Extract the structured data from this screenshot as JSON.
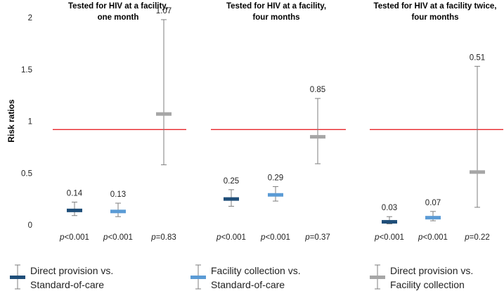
{
  "chart_data": {
    "type": "scatter",
    "subtype": "point-estimate-with-error-bars",
    "ylabel": "Risk ratios",
    "ylim": [
      0,
      2
    ],
    "yticks": [
      "0",
      "0.5",
      "1",
      "1.5",
      "2"
    ],
    "reference_line": {
      "value": 0.92,
      "color": "#e8262b"
    },
    "series": [
      {
        "name": "Direct provision vs. Standard-of-care",
        "color": "#1f4e79"
      },
      {
        "name": "Facility collection vs. Standard-of-care",
        "color": "#5b9bd5"
      },
      {
        "name": "Direct provision vs. Facility collection",
        "color": "#a6a6a6"
      }
    ],
    "panels": [
      {
        "title_line1": "Tested for HIV at a facility,",
        "title_line2": "one month",
        "points": [
          {
            "series": 0,
            "value": 0.14,
            "lower": 0.09,
            "upper": 0.22,
            "label": "0.14",
            "p_prefix": "p",
            "p_rest": "<0.001"
          },
          {
            "series": 1,
            "value": 0.13,
            "lower": 0.08,
            "upper": 0.21,
            "label": "0.13",
            "p_prefix": "p",
            "p_rest": "<0.001"
          },
          {
            "series": 2,
            "value": 1.07,
            "lower": 0.58,
            "upper": 1.98,
            "label": "1.07",
            "p_prefix": "p",
            "p_rest": "=0.83"
          }
        ]
      },
      {
        "title_line1": "Tested for HIV at a facility,",
        "title_line2": "four months",
        "points": [
          {
            "series": 0,
            "value": 0.25,
            "lower": 0.18,
            "upper": 0.34,
            "label": "0.25",
            "p_prefix": "p",
            "p_rest": "<0.001"
          },
          {
            "series": 1,
            "value": 0.29,
            "lower": 0.23,
            "upper": 0.37,
            "label": "0.29",
            "p_prefix": "p",
            "p_rest": "<0.001"
          },
          {
            "series": 2,
            "value": 0.85,
            "lower": 0.59,
            "upper": 1.22,
            "label": "0.85",
            "p_prefix": "p",
            "p_rest": "=0.37"
          }
        ]
      },
      {
        "title_line1": "Tested for HIV at a facility twice,",
        "title_line2": "four months",
        "points": [
          {
            "series": 0,
            "value": 0.03,
            "lower": 0.01,
            "upper": 0.08,
            "label": "0.03",
            "p_prefix": "p",
            "p_rest": "<0.001"
          },
          {
            "series": 1,
            "value": 0.07,
            "lower": 0.04,
            "upper": 0.13,
            "label": "0.07",
            "p_prefix": "p",
            "p_rest": "<0.001"
          },
          {
            "series": 2,
            "value": 0.51,
            "lower": 0.17,
            "upper": 1.53,
            "label": "0.51",
            "p_prefix": "p",
            "p_rest": "=0.22"
          }
        ]
      }
    ],
    "legend": [
      {
        "series": 0,
        "line1": "Direct provision vs.",
        "line2": "Standard-of-care"
      },
      {
        "series": 1,
        "line1": "Facility collection vs.",
        "line2": "Standard-of-care"
      },
      {
        "series": 2,
        "line1": "Direct provision vs.",
        "line2": "Facility collection"
      }
    ]
  }
}
